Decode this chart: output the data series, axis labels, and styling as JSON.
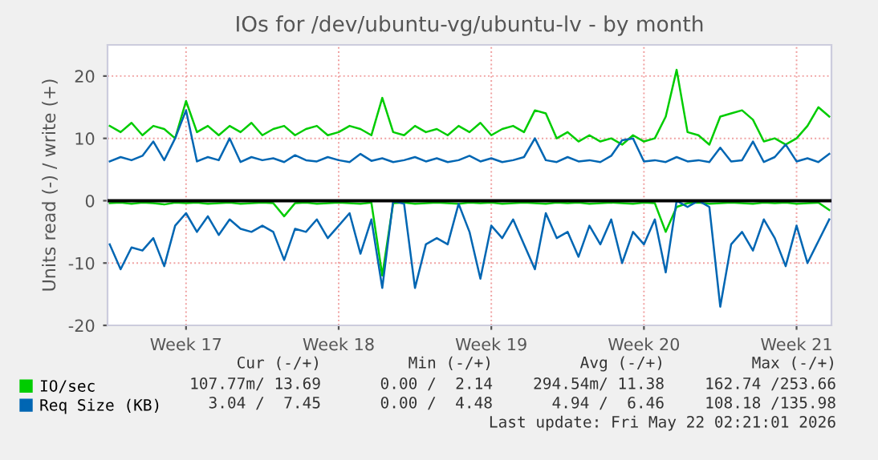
{
  "chart_data": {
    "type": "line",
    "title": "IOs for /dev/ubuntu-vg/ubuntu-lv - by month",
    "ylabel": "Units read (-) / write (+)",
    "categories": [
      null,
      null,
      null,
      null,
      null,
      null,
      null,
      "Week 17",
      null,
      null,
      null,
      null,
      null,
      null,
      null,
      null,
      null,
      null,
      null,
      null,
      null,
      "Week 18",
      null,
      null,
      null,
      null,
      null,
      null,
      null,
      null,
      null,
      null,
      null,
      null,
      null,
      "Week 19",
      null,
      null,
      null,
      null,
      null,
      null,
      null,
      null,
      null,
      null,
      null,
      null,
      null,
      "Week 20",
      null,
      null,
      null,
      null,
      null,
      null,
      null,
      null,
      null,
      null,
      null,
      null,
      null,
      "Week 21",
      null,
      null,
      null
    ],
    "series": [
      {
        "name": "IO/sec",
        "color": "#00cc00",
        "values": [
          12,
          11,
          12.5,
          10.5,
          12,
          11.5,
          10,
          16,
          11,
          12,
          10.5,
          12,
          11,
          12.5,
          10.5,
          11.5,
          12,
          10.5,
          11.5,
          12,
          10.5,
          11,
          12,
          11.5,
          10.5,
          16.5,
          11,
          10.5,
          12,
          11,
          11.5,
          10.5,
          12,
          11,
          12.5,
          10.5,
          11.5,
          12,
          11,
          14.5,
          14,
          10,
          11,
          9.5,
          10.5,
          9.5,
          10,
          9,
          10.5,
          9.5,
          10,
          13.5,
          21,
          11,
          10.5,
          9,
          13.5,
          14,
          14.5,
          13,
          9.5,
          10,
          9,
          10,
          12,
          15,
          13.5
        ]
      },
      {
        "color": "#00cc00",
        "values": [
          -0.4,
          -0.3,
          -0.5,
          -0.3,
          -0.4,
          -0.6,
          -0.3,
          -0.4,
          -0.3,
          -0.5,
          -0.4,
          -0.3,
          -0.5,
          -0.4,
          -0.3,
          -0.4,
          -2.5,
          -0.4,
          -0.3,
          -0.5,
          -0.4,
          -0.3,
          -0.4,
          -0.5,
          -0.3,
          -12,
          -0.4,
          -0.3,
          -0.5,
          -0.4,
          -0.3,
          -0.4,
          -0.5,
          -0.3,
          -0.4,
          -0.3,
          -0.5,
          -0.4,
          -0.3,
          -0.4,
          -0.5,
          -0.3,
          -0.4,
          -0.3,
          -0.5,
          -0.4,
          -0.3,
          -0.4,
          -0.5,
          -0.3,
          -0.4,
          -5,
          -1,
          -0.4,
          -0.3,
          -0.5,
          -0.4,
          -0.3,
          -0.4,
          -0.5,
          -0.3,
          -0.4,
          -0.3,
          -0.5,
          -0.4,
          -0.3,
          -1.5
        ]
      },
      {
        "name": "Req Size (KB)",
        "color": "#0066b3",
        "values": [
          6.3,
          7,
          6.5,
          7.2,
          9.5,
          6.5,
          10,
          14.5,
          6.3,
          7,
          6.5,
          10,
          6.2,
          7,
          6.5,
          6.8,
          6.2,
          7.3,
          6.5,
          6.3,
          7,
          6.5,
          6.2,
          7.5,
          6.4,
          6.8,
          6.2,
          6.5,
          7,
          6.3,
          6.8,
          6.2,
          6.5,
          7.2,
          6.3,
          6.8,
          6.2,
          6.5,
          7,
          10,
          6.5,
          6.2,
          7,
          6.3,
          6.5,
          6.2,
          7.2,
          9.7,
          10,
          6.3,
          6.5,
          6.2,
          7,
          6.3,
          6.5,
          6.2,
          8.5,
          6.3,
          6.5,
          9.5,
          6.2,
          7,
          9,
          6.3,
          6.8,
          6.2,
          7.5
        ]
      },
      {
        "color": "#0066b3",
        "values": [
          -7,
          -11,
          -7.5,
          -8,
          -6,
          -10.5,
          -4,
          -2,
          -5,
          -2.5,
          -5.5,
          -3,
          -4.5,
          -5,
          -4,
          -5,
          -9.5,
          -4.5,
          -5,
          -3,
          -6,
          -4,
          -2,
          -8.5,
          -3,
          -14,
          0,
          -0.5,
          -14,
          -7,
          -6,
          -7,
          -0.5,
          -5,
          -12.5,
          -4,
          -6,
          -3,
          -7,
          -11,
          -2,
          -6,
          -5,
          -9,
          -4,
          -7,
          -3,
          -10,
          -5,
          -7,
          -3,
          -11.5,
          0,
          -1,
          0,
          -1,
          -17,
          -7,
          -5,
          -8,
          -3,
          -6,
          -10.5,
          -4,
          -10,
          -6.5,
          -3
        ]
      }
    ],
    "ylim": [
      -20,
      25
    ],
    "yticks": [
      -20,
      -10,
      0,
      10,
      20
    ],
    "grid": true,
    "legend": "bottom left",
    "line_style": "solid",
    "marker": "none",
    "ref_lines": [
      {
        "axis": "y",
        "value": 0,
        "label": null,
        "color": "#000000"
      }
    ],
    "annotations": [
      "Cur (-/+)",
      "Min (-/+)",
      "Avg (-/+)",
      "Max (-/+)",
      "107.77m/ 13.69",
      "0.00 /  2.14",
      "294.54m/ 11.38",
      "162.74 /253.66",
      "3.04 /  7.45",
      "0.00 /  4.48",
      "4.94 /  6.46",
      "108.18 /135.98",
      "Last update: Fri May 22 02:21:01 2026"
    ]
  }
}
